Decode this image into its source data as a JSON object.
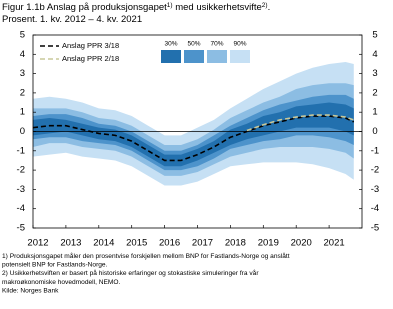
{
  "chart_data": {
    "type": "fan",
    "title_parts": [
      "Figur 1.1b Anslag på produksjonsgapet",
      "1)",
      " med usikkerhetsvifte",
      "2)",
      "."
    ],
    "subtitle": "Prosent. 1. kv. 2012 – 4. kv. 2021",
    "x": [
      2012,
      2012.5,
      2013,
      2013.5,
      2014,
      2014.5,
      2015,
      2015.5,
      2016,
      2016.5,
      2017,
      2017.5,
      2018,
      2018.5,
      2019,
      2019.5,
      2020,
      2020.5,
      2021,
      2021.5,
      2021.75
    ],
    "xlim": [
      2012,
      2022
    ],
    "xticks": [
      2012,
      2013,
      2014,
      2015,
      2016,
      2017,
      2018,
      2019,
      2020,
      2021
    ],
    "ylim": [
      -5,
      5
    ],
    "yticks": [
      -5,
      -4,
      -3,
      -2,
      -1,
      0,
      1,
      2,
      3,
      4,
      5
    ],
    "right_axis": true,
    "zero_line": true,
    "bands": [
      {
        "name": "90%",
        "color": "#c6e0f4",
        "upper": [
          1.7,
          1.8,
          1.7,
          1.5,
          1.2,
          1.1,
          0.8,
          0.3,
          -0.2,
          -0.2,
          0.2,
          0.6,
          1.2,
          1.7,
          2.2,
          2.6,
          3.0,
          3.3,
          3.5,
          3.6,
          3.5
        ],
        "lower": [
          -1.3,
          -1.2,
          -1.1,
          -1.3,
          -1.4,
          -1.5,
          -1.8,
          -2.3,
          -2.8,
          -2.8,
          -2.6,
          -2.2,
          -1.8,
          -1.7,
          -1.6,
          -1.6,
          -1.6,
          -1.7,
          -1.9,
          -2.2,
          -2.5
        ]
      },
      {
        "name": "70%",
        "color": "#8cbde3",
        "upper": [
          1.2,
          1.2,
          1.2,
          1.0,
          0.7,
          0.6,
          0.3,
          -0.2,
          -0.7,
          -0.7,
          -0.4,
          0.1,
          0.7,
          1.1,
          1.5,
          1.8,
          2.2,
          2.4,
          2.5,
          2.5,
          2.4
        ],
        "lower": [
          -0.8,
          -0.6,
          -0.6,
          -0.8,
          -0.9,
          -1.0,
          -1.3,
          -1.8,
          -2.3,
          -2.3,
          -2.1,
          -1.7,
          -1.3,
          -1.1,
          -0.9,
          -0.8,
          -0.8,
          -0.8,
          -0.9,
          -1.1,
          -1.4
        ]
      },
      {
        "name": "50%",
        "color": "#4d93cb",
        "upper": [
          0.8,
          0.9,
          0.9,
          0.7,
          0.4,
          0.3,
          0.0,
          -0.5,
          -1.0,
          -1.0,
          -0.7,
          -0.2,
          0.3,
          0.7,
          1.1,
          1.4,
          1.6,
          1.8,
          1.9,
          1.9,
          1.7
        ],
        "lower": [
          -0.4,
          -0.3,
          -0.3,
          -0.5,
          -0.6,
          -0.7,
          -1.0,
          -1.5,
          -2.0,
          -2.0,
          -1.8,
          -1.4,
          -0.9,
          -0.7,
          -0.5,
          -0.4,
          -0.2,
          -0.2,
          -0.3,
          -0.5,
          -0.7
        ]
      },
      {
        "name": "30%",
        "color": "#2270ae",
        "upper": [
          0.6,
          0.7,
          0.6,
          0.4,
          0.2,
          0.1,
          -0.2,
          -0.7,
          -1.2,
          -1.2,
          -0.9,
          -0.5,
          0.1,
          0.4,
          0.8,
          1.0,
          1.3,
          1.4,
          1.5,
          1.4,
          1.2
        ],
        "lower": [
          -0.2,
          -0.1,
          0.0,
          -0.2,
          -0.4,
          -0.5,
          -0.8,
          -1.3,
          -1.8,
          -1.8,
          -1.5,
          -1.1,
          -0.7,
          -0.4,
          -0.2,
          0.0,
          0.2,
          0.2,
          0.2,
          0.0,
          -0.2
        ]
      }
    ],
    "series": [
      {
        "name": "Anslag PPR 3/18",
        "color": "#000000",
        "values": [
          0.2,
          0.3,
          0.3,
          0.1,
          -0.1,
          -0.2,
          -0.5,
          -1.0,
          -1.5,
          -1.5,
          -1.2,
          -0.8,
          -0.3,
          0.0,
          0.3,
          0.5,
          0.7,
          0.8,
          0.8,
          0.7,
          0.5
        ]
      },
      {
        "name": "Anslag PPR 2/18",
        "color": "#c8c89a",
        "values": [
          null,
          null,
          null,
          null,
          null,
          null,
          null,
          null,
          null,
          null,
          null,
          null,
          null,
          0.05,
          0.35,
          0.6,
          0.75,
          0.85,
          0.85,
          0.75,
          0.6
        ]
      }
    ],
    "footnotes": [
      "1) Produksjonsgapet måler den prosentvise forskjellen mellom BNP for Fastlands-Norge og anslått",
      "potensielt BNP for Fastlands-Norge.",
      "2) Usikkerhetsviften er basert på historiske erfaringer og stokastiske simuleringer fra vår",
      "makroøkonomiske hovedmodell, NEMO.",
      "Kilde: Norges Bank"
    ]
  }
}
